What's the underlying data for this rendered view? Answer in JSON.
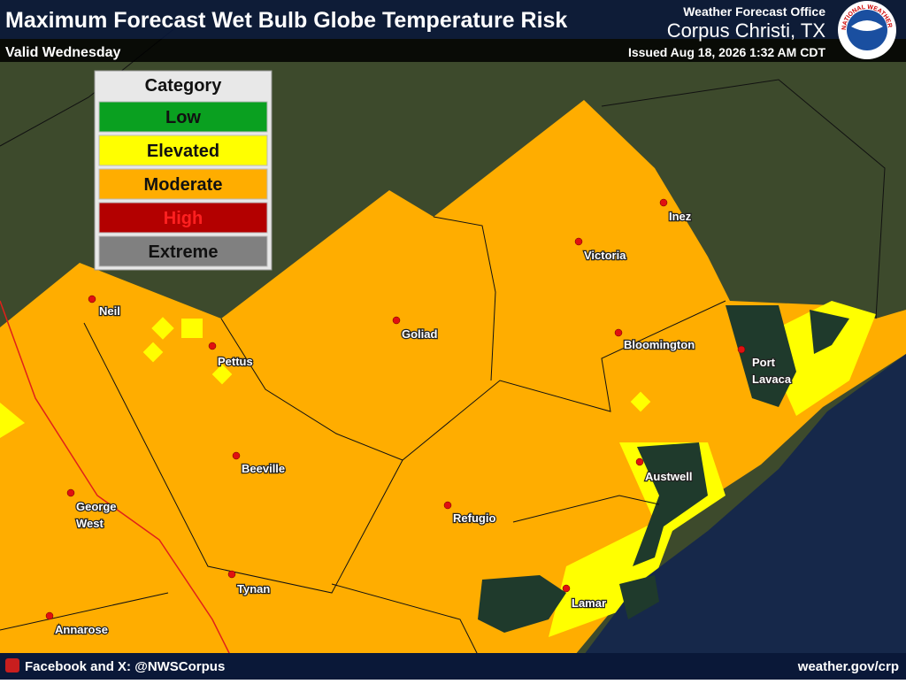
{
  "header": {
    "title": "Maximum Forecast Wet Bulb Globe Temperature Risk",
    "valid": "Valid Wednesday",
    "office_line": "Weather Forecast Office",
    "office_name": "Corpus Christi, TX",
    "issued": "Issued Aug 18, 2026 1:32 AM CDT",
    "logo_text": "NATIONAL WEATHER SERVICE"
  },
  "legend": {
    "title": "Category",
    "items": [
      {
        "label": "Low",
        "color": "#0aa020"
      },
      {
        "label": "Elevated",
        "color": "#ffff00"
      },
      {
        "label": "Moderate",
        "color": "#ffad00"
      },
      {
        "label": "High",
        "color": "#b30000"
      },
      {
        "label": "Extreme",
        "color": "#808080"
      }
    ]
  },
  "cities": [
    {
      "lines": [
        "Neil"
      ]
    },
    {
      "lines": [
        "Pettus"
      ]
    },
    {
      "lines": [
        "Goliad"
      ]
    },
    {
      "lines": [
        "Victoria"
      ]
    },
    {
      "lines": [
        "Inez"
      ]
    },
    {
      "lines": [
        "Bloomington"
      ]
    },
    {
      "lines": [
        "Port",
        "Lavaca"
      ]
    },
    {
      "lines": [
        "Beeville"
      ]
    },
    {
      "lines": [
        "George",
        "West"
      ]
    },
    {
      "lines": [
        "Refugio"
      ]
    },
    {
      "lines": [
        "Austwell"
      ]
    },
    {
      "lines": [
        "Tynan"
      ]
    },
    {
      "lines": [
        "Annarose"
      ]
    },
    {
      "lines": [
        "Lamar"
      ]
    }
  ],
  "footer": {
    "social": "Facebook and X: @NWSCorpus",
    "url": "weather.gov/crp"
  }
}
